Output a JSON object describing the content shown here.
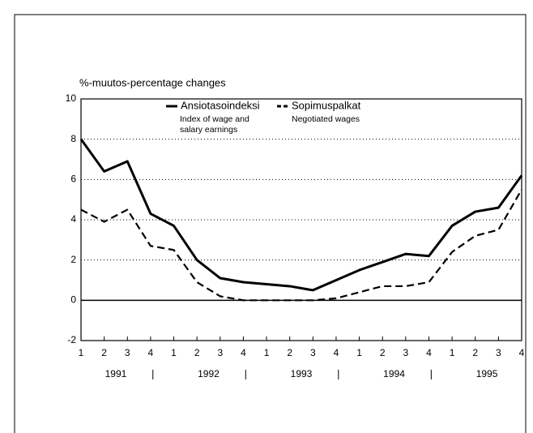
{
  "chart_data": {
    "type": "line",
    "title": "%-muutos-percentage changes",
    "categories": [
      "1",
      "2",
      "3",
      "4",
      "1",
      "2",
      "3",
      "4",
      "1",
      "2",
      "3",
      "4",
      "1",
      "2",
      "3",
      "4",
      "1",
      "2",
      "3",
      "4"
    ],
    "groups": [
      "1991",
      "1992",
      "1993",
      "1994",
      "1995"
    ],
    "series": [
      {
        "name": "Ansiotasoindeksi",
        "subtitle": [
          "Index of wage and",
          "salary earnings"
        ],
        "color": "#000000",
        "dash": false,
        "values": [
          8.0,
          6.4,
          6.9,
          4.3,
          3.7,
          2.0,
          1.1,
          0.9,
          0.8,
          0.7,
          0.5,
          1.0,
          1.5,
          1.9,
          2.3,
          2.2,
          3.7,
          4.4,
          4.6,
          6.2
        ]
      },
      {
        "name": "Sopimuspalkat",
        "subtitle": [
          "Negotiated wages"
        ],
        "color": "#000000",
        "dash": true,
        "values": [
          4.5,
          3.9,
          4.5,
          2.7,
          2.5,
          0.9,
          0.2,
          0.0,
          0.0,
          0.0,
          0.0,
          0.1,
          0.4,
          0.7,
          0.7,
          0.9,
          2.4,
          3.2,
          3.5,
          5.5
        ]
      }
    ],
    "ylim": [
      -2,
      10
    ],
    "yticks": [
      -2,
      0,
      2,
      4,
      6,
      8,
      10
    ],
    "grid": true
  }
}
